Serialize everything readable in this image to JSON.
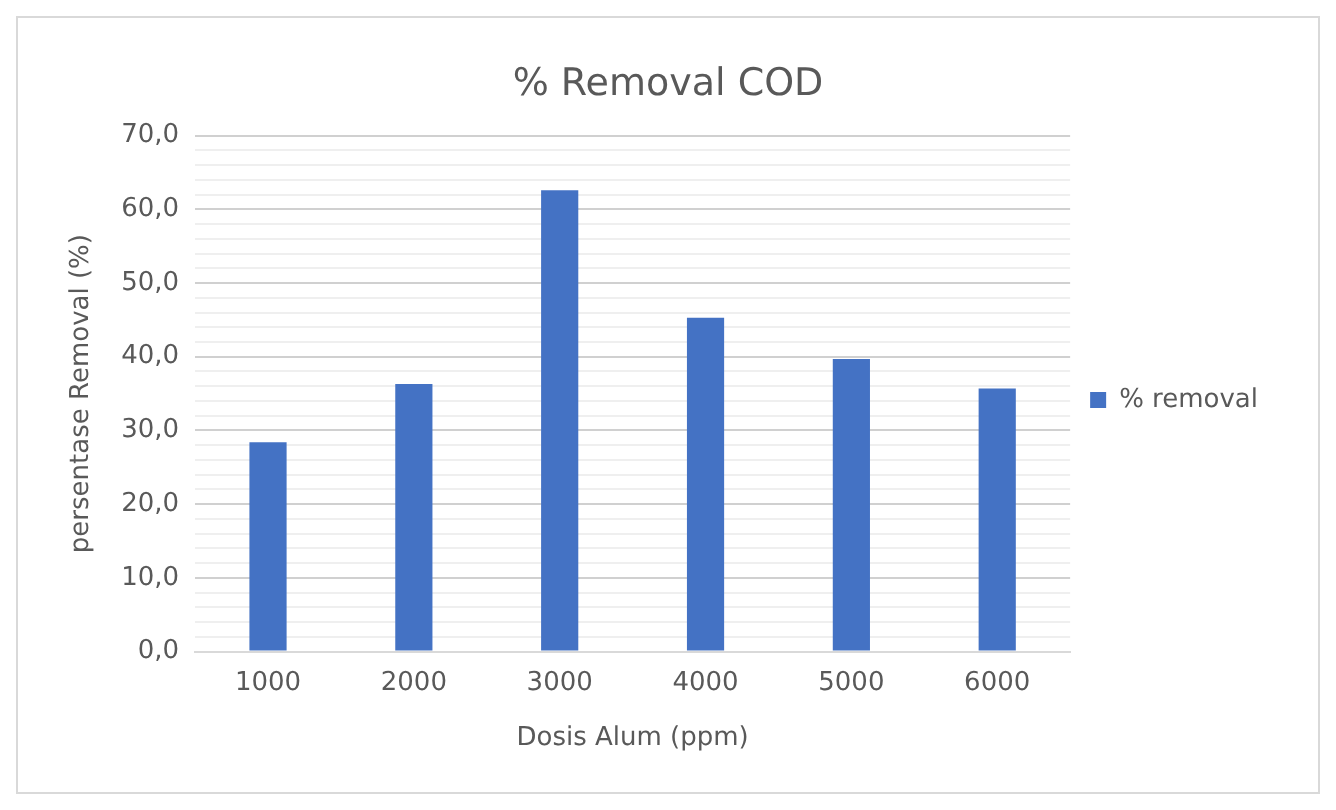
{
  "chart_data": {
    "type": "bar",
    "title": "% Removal COD",
    "xlabel": "Dosis Alum (ppm)",
    "ylabel": "persentase Removal (%)",
    "categories": [
      "1000",
      "2000",
      "3000",
      "4000",
      "5000",
      "6000"
    ],
    "series": [
      {
        "name": "% removal",
        "color": "#4472c4",
        "values": [
          28.4,
          36.3,
          62.6,
          45.3,
          39.7,
          35.7
        ]
      }
    ],
    "ylim": [
      0,
      70
    ],
    "yticks": [
      {
        "value": 0,
        "label": "0,0"
      },
      {
        "value": 2,
        "label": null
      },
      {
        "value": 4,
        "label": null
      },
      {
        "value": 6,
        "label": null
      },
      {
        "value": 8,
        "label": null
      },
      {
        "value": 10,
        "label": "10,0"
      },
      {
        "value": 12,
        "label": null
      },
      {
        "value": 14,
        "label": null
      },
      {
        "value": 16,
        "label": null
      },
      {
        "value": 18,
        "label": null
      },
      {
        "value": 20,
        "label": "20,0"
      },
      {
        "value": 22,
        "label": null
      },
      {
        "value": 24,
        "label": null
      },
      {
        "value": 26,
        "label": null
      },
      {
        "value": 28,
        "label": null
      },
      {
        "value": 30,
        "label": "30,0"
      },
      {
        "value": 32,
        "label": null
      },
      {
        "value": 34,
        "label": null
      },
      {
        "value": 36,
        "label": null
      },
      {
        "value": 38,
        "label": null
      },
      {
        "value": 40,
        "label": "40,0"
      },
      {
        "value": 42,
        "label": null
      },
      {
        "value": 44,
        "label": null
      },
      {
        "value": 46,
        "label": null
      },
      {
        "value": 48,
        "label": null
      },
      {
        "value": 50,
        "label": "50,0"
      },
      {
        "value": 52,
        "label": null
      },
      {
        "value": 54,
        "label": null
      },
      {
        "value": 56,
        "label": null
      },
      {
        "value": 58,
        "label": null
      },
      {
        "value": 60,
        "label": "60,0"
      },
      {
        "value": 62,
        "label": null
      },
      {
        "value": 64,
        "label": null
      },
      {
        "value": 66,
        "label": null
      },
      {
        "value": 68,
        "label": null
      },
      {
        "value": 70,
        "label": "70,0"
      }
    ],
    "grid": "y",
    "legend": "right"
  }
}
